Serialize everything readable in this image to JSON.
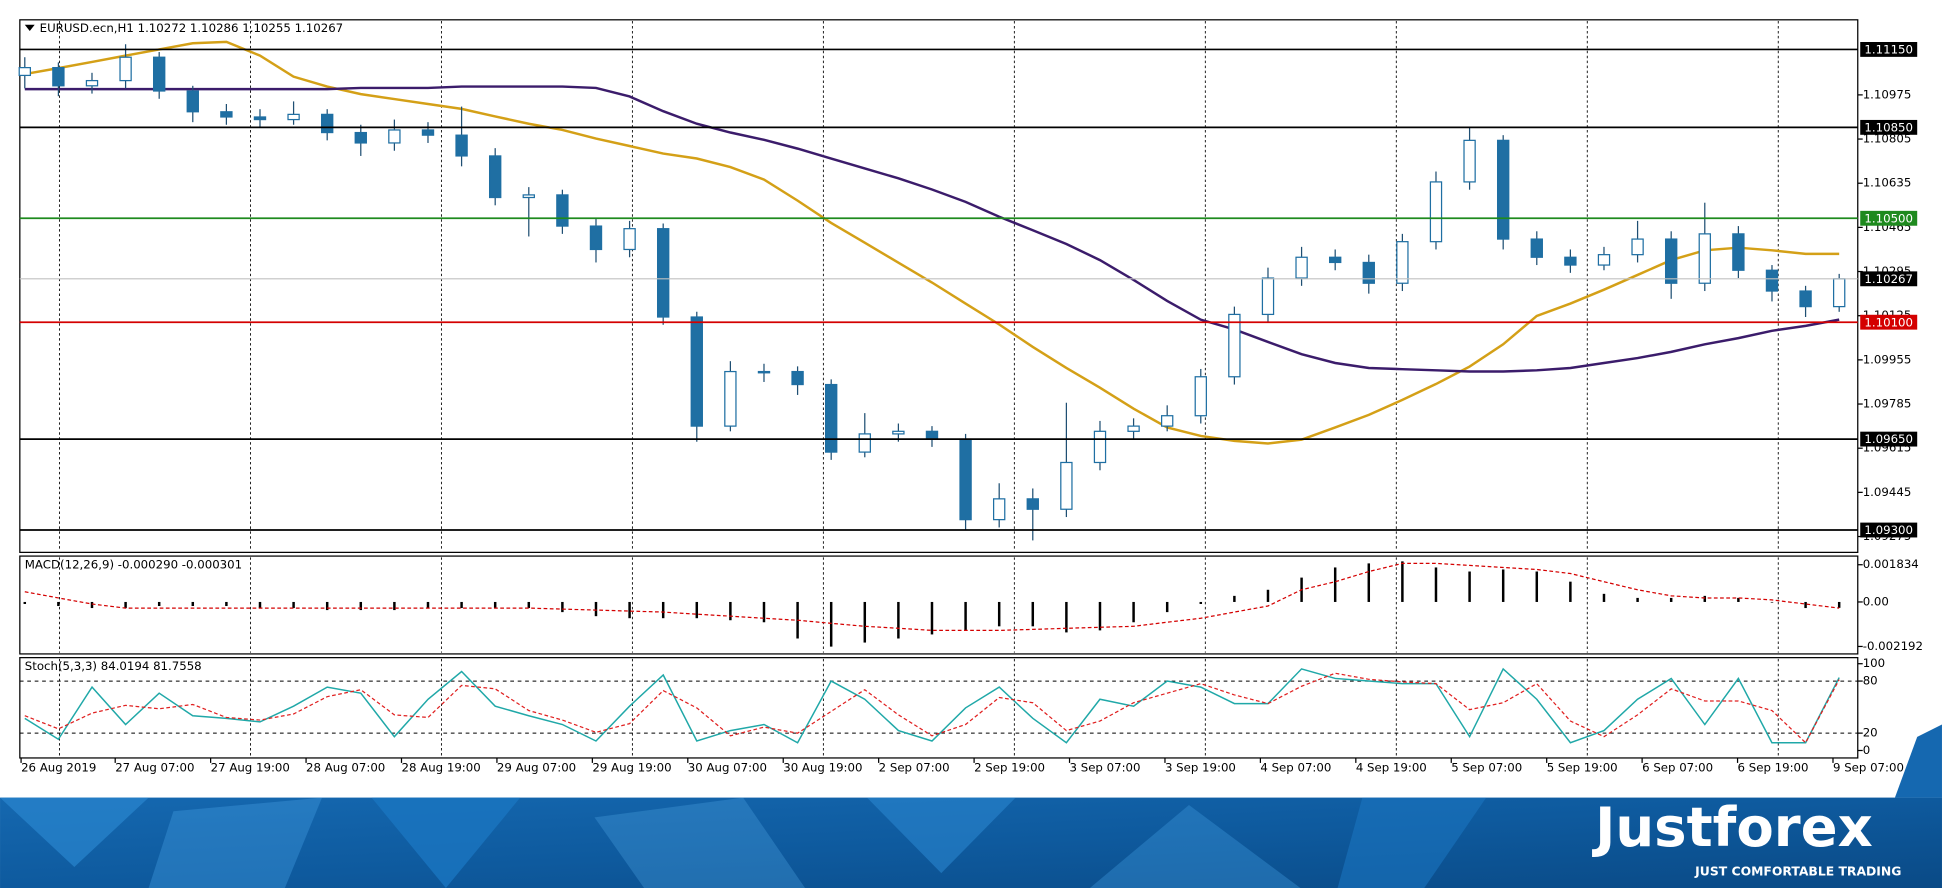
{
  "chart_data": [
    {
      "type": "candlestick",
      "title": "EURUSD.ecn,H1  1.10272 1.10286 1.10255 1.10267",
      "open": [
        1.1105,
        1.1108,
        1.1101,
        1.1103,
        1.1112,
        1.1099,
        1.1091,
        1.1089,
        1.1088,
        1.109,
        1.1083,
        1.1079,
        1.1084,
        1.1082,
        1.1074,
        1.1058,
        1.1059,
        1.1047,
        1.1038,
        1.1046,
        1.1012,
        1.097,
        1.0991,
        1.0991,
        1.0986,
        1.096,
        1.0967,
        1.0968,
        1.0965,
        1.0934,
        1.0942,
        1.0938,
        1.0956,
        1.0968,
        1.097,
        1.0974,
        1.0989,
        1.1013,
        1.1027,
        1.1035,
        1.1033,
        1.1025,
        1.1041,
        1.1064,
        1.108,
        1.1042,
        1.1035,
        1.1032,
        1.1036,
        1.1042,
        1.1025,
        1.1044,
        1.103,
        1.1022,
        1.1016
      ],
      "high": [
        1.1112,
        1.111,
        1.1106,
        1.1117,
        1.1114,
        1.1101,
        1.1094,
        1.1092,
        1.1095,
        1.1092,
        1.1086,
        1.1088,
        1.1087,
        1.1093,
        1.1077,
        1.1062,
        1.1061,
        1.105,
        1.1049,
        1.1048,
        1.1014,
        1.0995,
        1.0994,
        1.0993,
        1.0988,
        1.0975,
        1.0971,
        1.097,
        1.0967,
        1.0948,
        1.0946,
        1.0979,
        1.0972,
        1.0973,
        1.0978,
        1.0992,
        1.1016,
        1.1031,
        1.1039,
        1.1038,
        1.1036,
        1.1044,
        1.1068,
        1.1085,
        1.1082,
        1.1045,
        1.1038,
        1.1039,
        1.1049,
        1.1045,
        1.1056,
        1.1047,
        1.1032,
        1.1024,
        1.10286
      ],
      "low": [
        1.11,
        1.1097,
        1.1098,
        1.11,
        1.1096,
        1.1087,
        1.1086,
        1.1085,
        1.1086,
        1.108,
        1.1074,
        1.1076,
        1.1079,
        1.107,
        1.1055,
        1.1043,
        1.1044,
        1.1033,
        1.1035,
        1.1009,
        1.0964,
        1.0968,
        1.0987,
        1.0982,
        1.0957,
        1.0958,
        1.0964,
        1.0962,
        1.093,
        1.0931,
        1.0926,
        1.0935,
        1.0953,
        1.0965,
        1.0968,
        1.0971,
        1.0986,
        1.101,
        1.1024,
        1.103,
        1.1021,
        1.1022,
        1.1038,
        1.1061,
        1.1038,
        1.1032,
        1.1029,
        1.103,
        1.1033,
        1.1019,
        1.1022,
        1.1027,
        1.1018,
        1.1012,
        1.1014
      ],
      "close": [
        1.1108,
        1.1101,
        1.1103,
        1.1112,
        1.1099,
        1.1091,
        1.1089,
        1.1088,
        1.109,
        1.1083,
        1.1079,
        1.1084,
        1.1082,
        1.1074,
        1.1058,
        1.1059,
        1.1047,
        1.1038,
        1.1046,
        1.1012,
        1.097,
        1.0991,
        1.0991,
        1.0986,
        1.096,
        1.0967,
        1.0968,
        1.0965,
        1.0934,
        1.0942,
        1.0938,
        1.0956,
        1.0968,
        1.097,
        1.0974,
        1.0989,
        1.1013,
        1.1027,
        1.1035,
        1.1033,
        1.1025,
        1.1041,
        1.1064,
        1.108,
        1.1042,
        1.1035,
        1.1032,
        1.1036,
        1.1042,
        1.1025,
        1.1044,
        1.103,
        1.1022,
        1.1016,
        1.10267
      ],
      "up_color": "#ffffff",
      "down_color": "#1f6fa3",
      "wick_color": "#1f4f73",
      "lines": [
        {
          "color": "#d4a017",
          "values": [
            1.11055,
            1.11078,
            1.11102,
            1.11126,
            1.1115,
            1.11174,
            1.11179,
            1.11126,
            1.11045,
            1.11007,
            1.10978,
            1.10959,
            1.1094,
            1.10921,
            1.10892,
            1.10864,
            1.1084,
            1.10807,
            1.10778,
            1.10749,
            1.1073,
            1.10697,
            1.10649,
            1.10568,
            1.10482,
            1.10406,
            1.10329,
            1.10253,
            1.10172,
            1.10091,
            1.10005,
            1.09924,
            1.09848,
            1.09767,
            1.09695,
            1.09662,
            1.09643,
            1.09633,
            1.09648,
            1.09695,
            1.09743,
            1.09801,
            1.09862,
            1.09929,
            1.10015,
            1.10124,
            1.10172,
            1.10225,
            1.10282,
            1.10339,
            1.10377,
            1.10387,
            1.10377,
            1.10363,
            1.10363
          ]
        },
        {
          "color": "#3b1c6b",
          "values": [
            1.10997,
            1.10997,
            1.10997,
            1.10997,
            1.10997,
            1.10997,
            1.10997,
            1.10997,
            1.10997,
            1.10997,
            1.11002,
            1.11002,
            1.11002,
            1.11007,
            1.11007,
            1.11007,
            1.11007,
            1.11002,
            1.10969,
            1.10912,
            1.10864,
            1.1083,
            1.10802,
            1.10768,
            1.1073,
            1.10692,
            1.10654,
            1.10611,
            1.10563,
            1.10506,
            1.10454,
            1.10401,
            1.10339,
            1.10263,
            1.10182,
            1.1011,
            1.10072,
            1.10024,
            1.09977,
            1.09943,
            1.09924,
            1.09919,
            1.09915,
            1.0991,
            1.0991,
            1.09915,
            1.09924,
            1.09943,
            1.09962,
            1.09986,
            1.10015,
            1.10039,
            1.10067,
            1.10086,
            1.1011
          ]
        }
      ],
      "ylim": [
        1.09214,
        1.11264
      ],
      "yticks": [
        1.10975,
        1.10805,
        1.10635,
        1.10465,
        1.10295,
        1.10125,
        1.09955,
        1.09785,
        1.09615,
        1.09445,
        1.09275
      ],
      "levels": [
        {
          "value": 1.1115,
          "label": "1.11150",
          "color": "#000000"
        },
        {
          "value": 1.1085,
          "label": "1.10850",
          "color": "#000000"
        },
        {
          "value": 1.105,
          "label": "1.10500",
          "color": "#1e8a1e"
        },
        {
          "value": 1.101,
          "label": "1.10100",
          "color": "#d40000"
        },
        {
          "value": 1.0965,
          "label": "1.09650",
          "color": "#000000"
        },
        {
          "value": 1.093,
          "label": "1.09300",
          "color": "#000000"
        }
      ],
      "current_price": 1.10267,
      "current_price_color": "#c0c0c0",
      "x_tick_labels": [
        "26 Aug 2019",
        "27 Aug 07:00",
        "27 Aug 19:00",
        "28 Aug 07:00",
        "28 Aug 19:00",
        "29 Aug 07:00",
        "29 Aug 19:00",
        "30 Aug 07:00",
        "30 Aug 19:00",
        "2 Sep 07:00",
        "2 Sep 19:00",
        "3 Sep 07:00",
        "3 Sep 19:00",
        "4 Sep 07:00",
        "4 Sep 19:00",
        "5 Sep 07:00",
        "5 Sep 19:00",
        "6 Sep 07:00",
        "6 Sep 19:00",
        "9 Sep 07:00"
      ],
      "grid": true
    },
    {
      "type": "macd",
      "title": "MACD(12,26,9) -0.000290 -0.000301",
      "values": [
        -0.0001,
        -0.0002,
        -0.0003,
        -0.0003,
        -0.0002,
        -0.0002,
        -0.0002,
        -0.0003,
        -0.0003,
        -0.0004,
        -0.0004,
        -0.0004,
        -0.0003,
        -0.0003,
        -0.0003,
        -0.0003,
        -0.0005,
        -0.0007,
        -0.0008,
        -0.0008,
        -0.0008,
        -0.0009,
        -0.001,
        -0.0018,
        -0.0022,
        -0.002,
        -0.0018,
        -0.0016,
        -0.0014,
        -0.0012,
        -0.0012,
        -0.0015,
        -0.0014,
        -0.001,
        -0.0005,
        -0.0001,
        0.0003,
        0.0006,
        0.0012,
        0.0017,
        0.0019,
        0.002,
        0.0017,
        0.0015,
        0.0016,
        0.0015,
        0.001,
        0.0004,
        0.0002,
        0.0002,
        0.0003,
        0.0002,
        0,
        -0.0003,
        -0.00029
      ],
      "color": "#000000",
      "signal": {
        "color": "#d40000",
        "values": [
          0.0005,
          0.0002,
          -0.0001,
          -0.0003,
          -0.0003,
          -0.0003,
          -0.0003,
          -0.0003,
          -0.0003,
          -0.0003,
          -0.0003,
          -0.0003,
          -0.0003,
          -0.0003,
          -0.0003,
          -0.0003,
          -0.00035,
          -0.0004,
          -0.00045,
          -0.0005,
          -0.0006,
          -0.0007,
          -0.0008,
          -0.0009,
          -0.00105,
          -0.0012,
          -0.0013,
          -0.0014,
          -0.0014,
          -0.0014,
          -0.00135,
          -0.0013,
          -0.00125,
          -0.0012,
          -0.001,
          -0.0008,
          -0.0005,
          -0.0002,
          0.0006,
          0.001,
          0.0015,
          0.0019,
          0.0019,
          0.0018,
          0.0017,
          0.0016,
          0.0014,
          0.001,
          0.0006,
          0.0003,
          0.0002,
          0.0002,
          0.0001,
          -0.0001,
          -0.000301
        ]
      },
      "ylim": [
        -0.00256,
        0.00226
      ],
      "yticks": [
        0.001834,
        {
          "value": 0,
          "label": "0.00"
        },
        -0.002192
      ]
    },
    {
      "type": "stochastic",
      "title": "Stoch(5,3,3) 84.0194 81.7558",
      "series": [
        {
          "color": "#20a8a8",
          "values": [
            37,
            13,
            73,
            30,
            66,
            40,
            37,
            33,
            51,
            73,
            66,
            16,
            59,
            91,
            51,
            40,
            30,
            11,
            51,
            87,
            11,
            23,
            30,
            9,
            80,
            59,
            23,
            11,
            49,
            73,
            37,
            9,
            59,
            51,
            80,
            73,
            54,
            54,
            94,
            83,
            80,
            77,
            77,
            16,
            94,
            59,
            9,
            23,
            59,
            83,
            30,
            83,
            9,
            9,
            84.0194
          ]
        },
        {
          "color": "#e02020",
          "dashed": true,
          "values": [
            40,
            25,
            43,
            52,
            48,
            53,
            38,
            35,
            42,
            62,
            70,
            41,
            38,
            75,
            71,
            46,
            35,
            21,
            31,
            69,
            49,
            17,
            27,
            20,
            45,
            70,
            41,
            17,
            30,
            61,
            55,
            23,
            34,
            55,
            66,
            77,
            64,
            54,
            74,
            89,
            82,
            79,
            77,
            47,
            55,
            77,
            34,
            16,
            41,
            71,
            57,
            57,
            46,
            9,
            81.7558
          ]
        }
      ],
      "ylim": [
        -8.6,
        107
      ],
      "yticks": [
        100,
        80,
        20,
        0
      ],
      "levels": [
        80,
        20
      ]
    }
  ],
  "brand": {
    "name": "Justforex",
    "tagline": "JUST COMFORTABLE TRADING"
  }
}
